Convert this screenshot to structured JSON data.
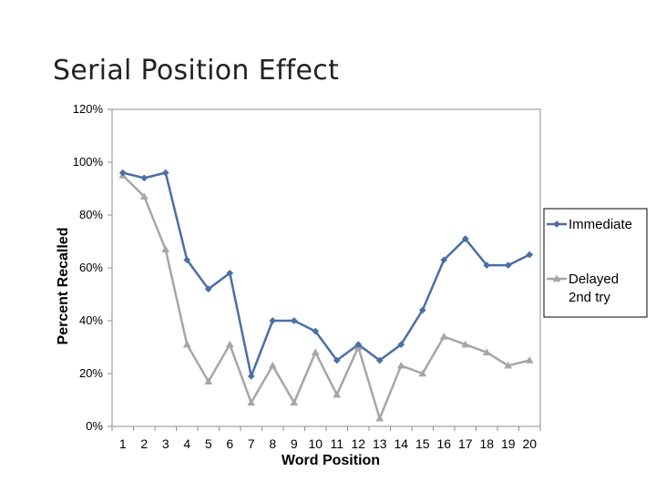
{
  "title": "Serial Position Effect",
  "chart_data": {
    "type": "line",
    "title": "Serial Position Effect",
    "xlabel": "Word Position",
    "ylabel": "Percent Recalled",
    "x": [
      1,
      2,
      3,
      4,
      5,
      6,
      7,
      8,
      9,
      10,
      11,
      12,
      13,
      14,
      15,
      16,
      17,
      18,
      19,
      20
    ],
    "x_tick_labels": [
      "1",
      "2",
      "3",
      "4",
      "5",
      "6",
      "7",
      "8",
      "9",
      "10",
      "11",
      "12",
      "13",
      "14",
      "15",
      "16",
      "17",
      "18",
      "19",
      "20"
    ],
    "ylim": [
      0,
      1.2
    ],
    "y_ticks": [
      0,
      0.2,
      0.4,
      0.6,
      0.8,
      1.0,
      1.2
    ],
    "y_tick_labels": [
      "0%",
      "20%",
      "40%",
      "60%",
      "80%",
      "100%",
      "120%"
    ],
    "grid": false,
    "legend_position": "right",
    "series": [
      {
        "name": "Immediate",
        "color": "#4a6fa5",
        "marker": "diamond",
        "values": [
          0.96,
          0.94,
          0.96,
          0.63,
          0.52,
          0.58,
          0.19,
          0.4,
          0.4,
          0.36,
          0.25,
          0.31,
          0.25,
          0.31,
          0.44,
          0.63,
          0.71,
          0.61,
          0.61,
          0.65
        ]
      },
      {
        "name": "Delayed 2nd try",
        "color": "#a6a6a6",
        "marker": "triangle",
        "values": [
          0.95,
          0.87,
          0.67,
          0.31,
          0.17,
          0.31,
          0.09,
          0.23,
          0.09,
          0.28,
          0.12,
          0.3,
          0.03,
          0.23,
          0.2,
          0.34,
          0.31,
          0.28,
          0.23,
          0.25
        ]
      }
    ],
    "legend": [
      {
        "lines": [
          "Immediate"
        ]
      },
      {
        "lines": [
          "Delayed",
          "2nd try"
        ]
      }
    ]
  }
}
